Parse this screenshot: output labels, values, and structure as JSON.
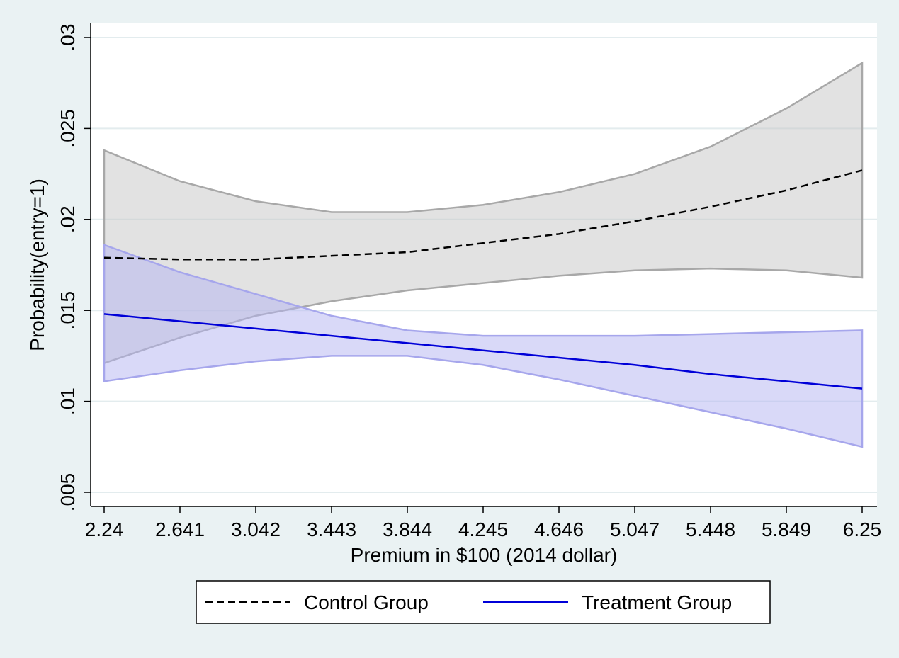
{
  "chart_data": {
    "type": "line",
    "title": "",
    "xlabel": "Premium in $100 (2014 dollar)",
    "ylabel": "Probability(entry=1)",
    "x_ticks": [
      "2.24",
      "2.641",
      "3.042",
      "3.443",
      "3.844",
      "4.245",
      "4.646",
      "5.047",
      "5.448",
      "5.849",
      "6.25"
    ],
    "y_ticks": [
      ".005",
      ".01",
      ".015",
      ".02",
      ".025",
      ".03"
    ],
    "xlim": [
      2.24,
      6.25
    ],
    "ylim": [
      0.005,
      0.03
    ],
    "grid": true,
    "legend_position": "bottom",
    "x": [
      2.24,
      2.641,
      3.042,
      3.443,
      3.844,
      4.245,
      4.646,
      5.047,
      5.448,
      5.849,
      6.25
    ],
    "series": [
      {
        "name": "Control Group",
        "style": "dashed",
        "color": "#000000",
        "band_color": "#c6c6c6",
        "band_edge_color": "#a8a8a8",
        "values": [
          0.0179,
          0.0178,
          0.0178,
          0.018,
          0.0182,
          0.0187,
          0.0192,
          0.0199,
          0.0207,
          0.0216,
          0.0227
        ],
        "ci_lower": [
          0.0121,
          0.0135,
          0.0147,
          0.0155,
          0.0161,
          0.0165,
          0.0169,
          0.0172,
          0.0173,
          0.0172,
          0.0168
        ],
        "ci_upper": [
          0.0238,
          0.0221,
          0.021,
          0.0204,
          0.0204,
          0.0208,
          0.0215,
          0.0225,
          0.024,
          0.0261,
          0.0286
        ]
      },
      {
        "name": "Treatment Group",
        "style": "solid",
        "color": "#0000d8",
        "band_color": "#b4b4f2",
        "band_edge_color": "#a6a6ec",
        "values": [
          0.0148,
          0.0144,
          0.014,
          0.0136,
          0.0132,
          0.0128,
          0.0124,
          0.012,
          0.0115,
          0.0111,
          0.0107
        ],
        "ci_lower": [
          0.0111,
          0.0117,
          0.0122,
          0.0125,
          0.0125,
          0.012,
          0.0112,
          0.0103,
          0.0094,
          0.0085,
          0.0075
        ],
        "ci_upper": [
          0.0186,
          0.0171,
          0.0159,
          0.0147,
          0.0139,
          0.0136,
          0.0136,
          0.0136,
          0.0137,
          0.0138,
          0.0139
        ]
      }
    ]
  }
}
